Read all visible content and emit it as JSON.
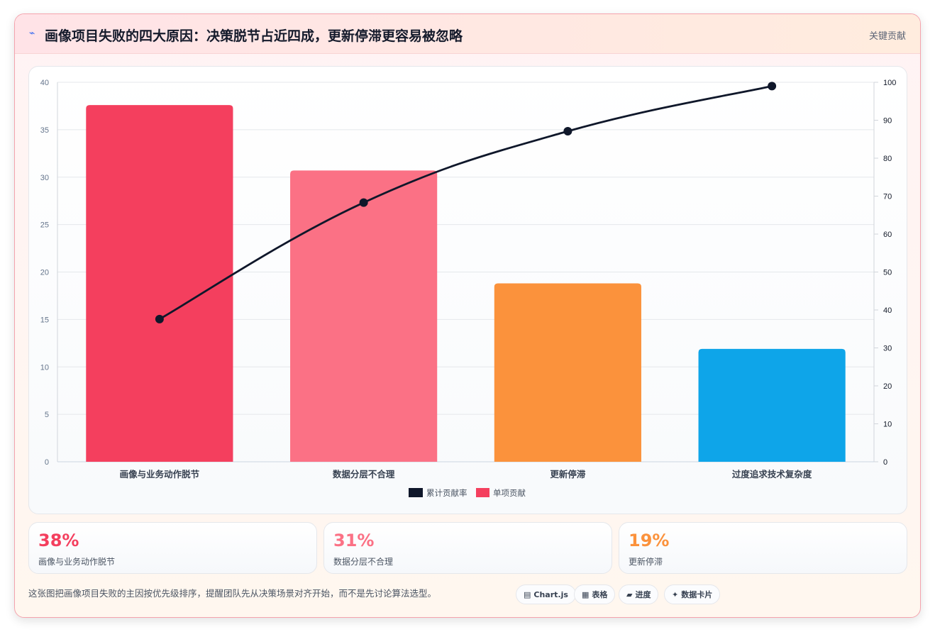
{
  "header": {
    "icon": "lightning-icon",
    "title": "画像项目失败的四大原因：决策脱节占近四成，更新停滞更容易被忽略",
    "tag": "关键贡献"
  },
  "chart_data": {
    "type": "bar",
    "categories": [
      "画像与业务动作脱节",
      "数据分层不合理",
      "更新停滞",
      "过度追求技术复杂度"
    ],
    "series": [
      {
        "name": "单项贡献",
        "type": "bar",
        "axis": "left",
        "values": [
          37.6,
          30.7,
          18.8,
          11.9
        ],
        "colors": [
          "#f43f5e",
          "#fb7185",
          "#fb923c",
          "#0ea5e9"
        ]
      },
      {
        "name": "累计贡献率",
        "type": "line",
        "axis": "right",
        "values": [
          37.6,
          68.3,
          87.1,
          99.0
        ],
        "color": "#0f172a"
      }
    ],
    "yleft": {
      "lim": [
        0,
        40
      ],
      "ticks": [
        "0",
        "5",
        "10",
        "15",
        "20",
        "25",
        "30",
        "35",
        "40"
      ]
    },
    "yright": {
      "lim": [
        0,
        100
      ],
      "ticks": [
        "0",
        "10",
        "20",
        "30",
        "40",
        "50",
        "60",
        "70",
        "80",
        "90",
        "100"
      ]
    },
    "legend": {
      "placement": "bottom-center",
      "items": [
        "累计贡献率",
        "单项贡献"
      ]
    },
    "grid": true
  },
  "stats": [
    {
      "value": "38%",
      "label": "画像与业务动作脱节",
      "color": "#f43f5e"
    },
    {
      "value": "31%",
      "label": "数据分层不合理",
      "color": "#fb7185"
    },
    {
      "value": "19%",
      "label": "更新停滞",
      "color": "#fb923c"
    }
  ],
  "footnote": "这张图把画像项目失败的主因按优先级排序，提醒团队先从决策场景对齐开始，而不是先讨论算法选型。",
  "pills": [
    {
      "icon": "chart-icon",
      "label": "Chart.js"
    },
    {
      "icon": "table-icon",
      "label": "表格"
    },
    {
      "icon": "progress-icon",
      "label": "进度"
    },
    {
      "icon": "sparkle-icon",
      "label": "数据卡片"
    }
  ]
}
